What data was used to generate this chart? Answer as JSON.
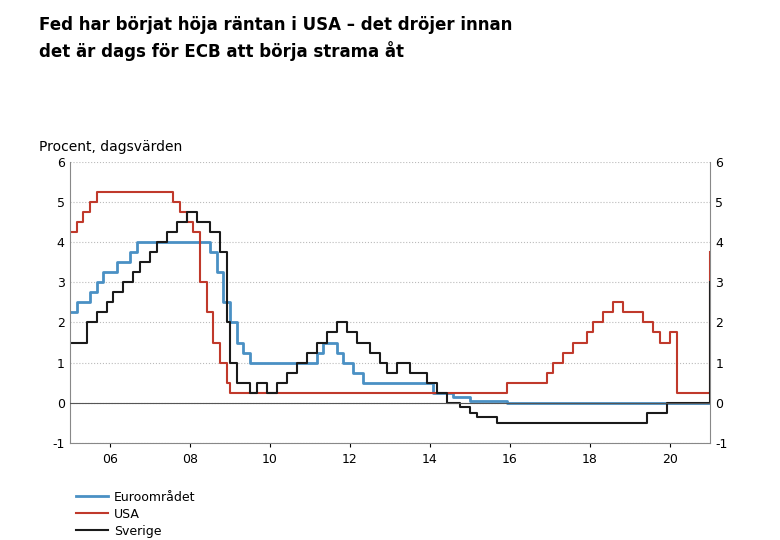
{
  "title": "Fed har börjat höja räntan i USA – det dröjer innan\ndet är dags för ECB att börja strama åt",
  "subtitle": "Procent, dagsvärden",
  "title_fontsize": 12,
  "subtitle_fontsize": 10,
  "xlim": [
    2005.0,
    2021.0
  ],
  "ylim": [
    -1,
    6
  ],
  "yticks": [
    -1,
    0,
    1,
    2,
    3,
    4,
    5,
    6
  ],
  "xticks": [
    2006,
    2008,
    2010,
    2012,
    2014,
    2016,
    2018,
    2020
  ],
  "xtick_labels": [
    "06",
    "08",
    "10",
    "12",
    "14",
    "16",
    "18",
    "20"
  ],
  "grid_color": "#bbbbbb",
  "background_color": "#ffffff",
  "euro_color": "#4a90c4",
  "usa_color": "#c0392b",
  "sverige_color": "#1a1a1a",
  "euro_label": "Euroområdet",
  "usa_label": "USA",
  "sverige_label": "Sverige",
  "euro_x": [
    2005.0,
    2005.17,
    2005.5,
    2005.67,
    2005.83,
    2006.17,
    2006.5,
    2006.67,
    2007.0,
    2007.5,
    2008.5,
    2008.67,
    2008.83,
    2009.0,
    2009.17,
    2009.33,
    2009.5,
    2010.0,
    2011.17,
    2011.33,
    2011.67,
    2011.83,
    2012.08,
    2012.33,
    2013.42,
    2014.08,
    2014.58,
    2015.0,
    2015.92,
    2019.58,
    2021.0
  ],
  "euro_y": [
    2.25,
    2.5,
    2.75,
    3.0,
    3.25,
    3.5,
    3.75,
    4.0,
    4.0,
    4.0,
    3.75,
    3.25,
    2.5,
    2.0,
    1.5,
    1.25,
    1.0,
    1.0,
    1.25,
    1.5,
    1.25,
    1.0,
    0.75,
    0.5,
    0.5,
    0.25,
    0.15,
    0.05,
    0.0,
    0.0,
    0.0
  ],
  "usa_x": [
    2005.0,
    2005.17,
    2005.33,
    2005.5,
    2005.67,
    2005.83,
    2006.0,
    2006.17,
    2006.33,
    2006.42,
    2007.58,
    2007.75,
    2007.92,
    2008.08,
    2008.25,
    2008.42,
    2008.58,
    2008.75,
    2008.92,
    2009.0,
    2009.5,
    2010.0,
    2011.0,
    2012.0,
    2013.0,
    2014.0,
    2015.0,
    2015.92,
    2016.0,
    2016.92,
    2017.08,
    2017.33,
    2017.58,
    2017.92,
    2018.08,
    2018.33,
    2018.58,
    2018.83,
    2019.08,
    2019.33,
    2019.58,
    2019.75,
    2020.0,
    2020.17,
    2020.42,
    2021.0
  ],
  "usa_y": [
    4.25,
    4.5,
    4.75,
    5.0,
    5.25,
    5.25,
    5.25,
    5.25,
    5.25,
    5.25,
    5.0,
    4.75,
    4.5,
    4.25,
    3.0,
    2.25,
    1.5,
    1.0,
    0.5,
    0.25,
    0.25,
    0.25,
    0.25,
    0.25,
    0.25,
    0.25,
    0.25,
    0.5,
    0.5,
    0.75,
    1.0,
    1.25,
    1.5,
    1.75,
    2.0,
    2.25,
    2.5,
    2.25,
    2.25,
    2.0,
    1.75,
    1.5,
    1.75,
    0.25,
    0.25,
    3.75
  ],
  "sverige_x": [
    2005.0,
    2005.17,
    2005.42,
    2005.67,
    2005.92,
    2006.08,
    2006.33,
    2006.58,
    2006.75,
    2007.0,
    2007.17,
    2007.42,
    2007.67,
    2007.92,
    2008.17,
    2008.5,
    2008.75,
    2008.92,
    2009.0,
    2009.17,
    2009.5,
    2009.67,
    2009.92,
    2010.17,
    2010.42,
    2010.67,
    2010.92,
    2011.17,
    2011.42,
    2011.67,
    2011.92,
    2012.17,
    2012.5,
    2012.75,
    2012.92,
    2013.17,
    2013.5,
    2013.92,
    2014.17,
    2014.42,
    2014.75,
    2015.0,
    2015.17,
    2015.67,
    2016.0,
    2019.42,
    2019.92,
    2021.0
  ],
  "sverige_y": [
    1.5,
    1.5,
    2.0,
    2.25,
    2.5,
    2.75,
    3.0,
    3.25,
    3.5,
    3.75,
    4.0,
    4.25,
    4.5,
    4.75,
    4.5,
    4.25,
    3.75,
    2.0,
    1.0,
    0.5,
    0.25,
    0.5,
    0.25,
    0.5,
    0.75,
    1.0,
    1.25,
    1.5,
    1.75,
    2.0,
    1.75,
    1.5,
    1.25,
    1.0,
    0.75,
    1.0,
    0.75,
    0.5,
    0.25,
    0.0,
    -0.1,
    -0.25,
    -0.35,
    -0.5,
    -0.5,
    -0.25,
    0.0,
    3.0
  ]
}
